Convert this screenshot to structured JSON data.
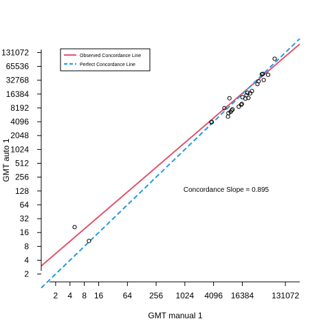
{
  "chart_data": {
    "type": "scatter",
    "title": "",
    "xlabel": "GMT manual 1",
    "ylabel": "GMT auto 1",
    "log_base": 2,
    "xlim": [
      1,
      262144
    ],
    "ylim": [
      1.5,
      215000
    ],
    "x_ticks": [
      2,
      4,
      8,
      16,
      64,
      256,
      1024,
      4096,
      16384,
      131072
    ],
    "y_ticks": [
      2,
      4,
      8,
      16,
      32,
      64,
      128,
      256,
      512,
      1024,
      2048,
      4096,
      8192,
      16384,
      32768,
      65536,
      131072
    ],
    "grid": false,
    "legend_position": "top-left",
    "annotation": "Concordance Slope = 0.895",
    "colors": {
      "observed": "#df536b",
      "perfect": "#2297e6",
      "points": "#000000"
    },
    "series": [
      {
        "name": "Observed Concordance Line",
        "kind": "line",
        "style": "solid",
        "color": "#df536b",
        "x": [
          1,
          262144
        ],
        "y": [
          3,
          200000
        ]
      },
      {
        "name": "Perfect Concordance Line",
        "kind": "line",
        "style": "dashed",
        "color": "#2297e6",
        "x": [
          1,
          262144
        ],
        "y": [
          1,
          262144
        ]
      }
    ],
    "points": [
      {
        "x": 5,
        "y": 21
      },
      {
        "x": 10,
        "y": 10.5
      },
      {
        "x": 3700,
        "y": 4000
      },
      {
        "x": 3750,
        "y": 4050
      },
      {
        "x": 6900,
        "y": 8100
      },
      {
        "x": 8200,
        "y": 5300
      },
      {
        "x": 8400,
        "y": 6300
      },
      {
        "x": 8800,
        "y": 13300
      },
      {
        "x": 9300,
        "y": 6700
      },
      {
        "x": 9800,
        "y": 7200
      },
      {
        "x": 10200,
        "y": 7600
      },
      {
        "x": 13800,
        "y": 8700
      },
      {
        "x": 15500,
        "y": 9600
      },
      {
        "x": 16000,
        "y": 10000
      },
      {
        "x": 16500,
        "y": 14000
      },
      {
        "x": 19000,
        "y": 13000
      },
      {
        "x": 20000,
        "y": 15500
      },
      {
        "x": 21000,
        "y": 17500
      },
      {
        "x": 22000,
        "y": 13500
      },
      {
        "x": 24000,
        "y": 17000
      },
      {
        "x": 26000,
        "y": 19000
      },
      {
        "x": 34000,
        "y": 27000
      },
      {
        "x": 36000,
        "y": 31000
      },
      {
        "x": 42000,
        "y": 44000
      },
      {
        "x": 44000,
        "y": 45000
      },
      {
        "x": 46000,
        "y": 33000
      },
      {
        "x": 57000,
        "y": 43000
      },
      {
        "x": 78000,
        "y": 96000
      }
    ]
  }
}
